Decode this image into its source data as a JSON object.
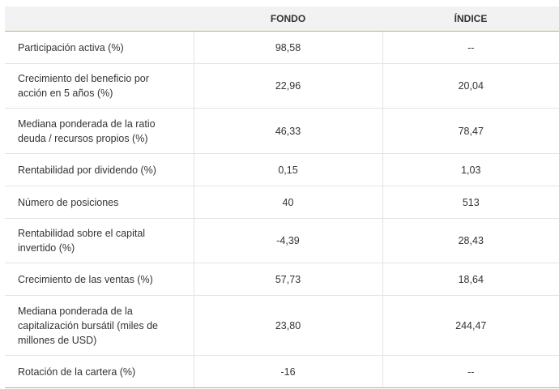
{
  "table": {
    "headers": [
      "",
      "FONDO",
      "ÍNDICE"
    ],
    "rows": [
      {
        "label": "Participación activa (%)",
        "fondo": "98,58",
        "indice": "--"
      },
      {
        "label": "Crecimiento del beneficio por acción en 5 años (%)",
        "fondo": "22,96",
        "indice": "20,04"
      },
      {
        "label": "Mediana ponderada de la ratio deuda / recursos propios (%)",
        "fondo": "46,33",
        "indice": "78,47"
      },
      {
        "label": "Rentabilidad por dividendo (%)",
        "fondo": "0,15",
        "indice": "1,03"
      },
      {
        "label": "Número de posiciones",
        "fondo": "40",
        "indice": "513"
      },
      {
        "label": "Rentabilidad sobre el capital invertido (%)",
        "fondo": "-4,39",
        "indice": "28,43"
      },
      {
        "label": "Crecimiento de las ventas (%)",
        "fondo": "57,73",
        "indice": "18,64"
      },
      {
        "label": "Mediana ponderada de la capitalización bursátil (miles de millones de USD)",
        "fondo": "23,80",
        "indice": "244,47"
      },
      {
        "label": "Rotación de la cartera (%)",
        "fondo": "-16",
        "indice": "--"
      }
    ]
  },
  "colors": {
    "header_bg": "#f2f2f2",
    "accent_line": "#c8b46a",
    "row_border": "#e3e3e3"
  }
}
